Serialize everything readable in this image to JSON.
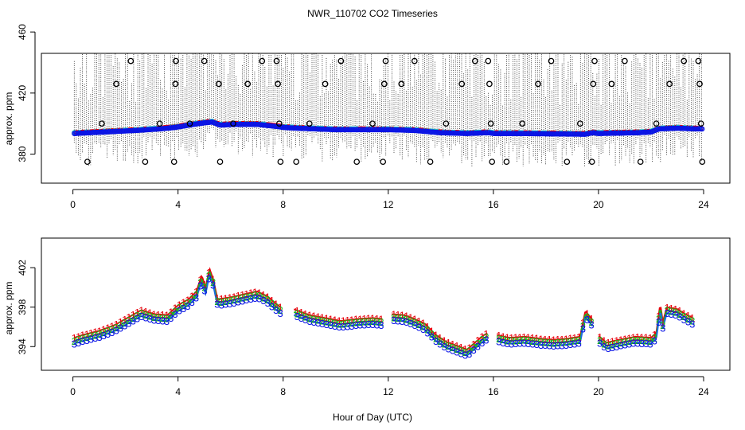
{
  "chart_data": {
    "title": "NWR_110702  CO2 Timeseries",
    "xlabel": "Hour of Day (UTC)",
    "colors": {
      "series1": "#e8000b",
      "series2": "#1ab51a",
      "series3": "#0a14e6",
      "line": "#1a6be0",
      "cyan": "#20c0c0",
      "outlier": "#000000"
    },
    "panels": [
      {
        "type": "scatter",
        "ylabel": "approx. ppm",
        "xlim": [
          -1.2,
          25.0
        ],
        "ylim": [
          361,
          446
        ],
        "xticks": [
          "0",
          "4",
          "8",
          "12",
          "16",
          "20",
          "24"
        ],
        "xtick_values": [
          0,
          4,
          8,
          12,
          16,
          20,
          24
        ],
        "yticks": [
          "380",
          "420",
          "460"
        ],
        "ytick_values": [
          380,
          420,
          460
        ],
        "series_note": "1-minute CO2 with whiskers and outlier circles",
        "baseline_knots": [
          [
            0.05,
            393.5
          ],
          [
            0.6,
            394
          ],
          [
            1.2,
            394.5
          ],
          [
            2.4,
            395.5
          ],
          [
            3.3,
            396.5
          ],
          [
            3.9,
            397.5
          ],
          [
            4.6,
            399.5
          ],
          [
            5.0,
            400.5
          ],
          [
            5.3,
            401
          ],
          [
            5.6,
            399
          ],
          [
            6.2,
            399.5
          ],
          [
            7.0,
            399.5
          ],
          [
            7.8,
            398
          ],
          [
            8.0,
            397.5
          ],
          [
            8.5,
            397
          ],
          [
            10.0,
            396
          ],
          [
            12.0,
            396
          ],
          [
            13.0,
            395.5
          ],
          [
            14.0,
            394
          ],
          [
            15.0,
            393.5
          ],
          [
            15.7,
            394
          ],
          [
            15.85,
            394
          ],
          [
            16.0,
            393.5
          ],
          [
            17.0,
            393.5
          ],
          [
            19.5,
            393
          ],
          [
            19.8,
            394
          ],
          [
            20.0,
            393.5
          ],
          [
            21.5,
            394
          ],
          [
            22.0,
            394.5
          ],
          [
            22.3,
            396.5
          ],
          [
            23.0,
            397
          ],
          [
            23.7,
            396.5
          ]
        ],
        "outliers": [
          {
            "x": 0.55,
            "y": 375
          },
          {
            "x": 1.1,
            "y": 400
          },
          {
            "x": 1.65,
            "y": 426
          },
          {
            "x": 2.2,
            "y": 441
          },
          {
            "x": 2.75,
            "y": 375
          },
          {
            "x": 3.3,
            "y": 400
          },
          {
            "x": 3.85,
            "y": 375
          },
          {
            "x": 3.9,
            "y": 426
          },
          {
            "x": 3.92,
            "y": 441
          },
          {
            "x": 4.45,
            "y": 400
          },
          {
            "x": 5.0,
            "y": 441
          },
          {
            "x": 5.55,
            "y": 426
          },
          {
            "x": 5.6,
            "y": 375
          },
          {
            "x": 6.1,
            "y": 400
          },
          {
            "x": 6.65,
            "y": 426
          },
          {
            "x": 7.2,
            "y": 441
          },
          {
            "x": 7.75,
            "y": 441
          },
          {
            "x": 7.8,
            "y": 426
          },
          {
            "x": 7.85,
            "y": 400
          },
          {
            "x": 7.9,
            "y": 375
          },
          {
            "x": 8.5,
            "y": 375
          },
          {
            "x": 9.0,
            "y": 400
          },
          {
            "x": 9.6,
            "y": 426
          },
          {
            "x": 10.2,
            "y": 441
          },
          {
            "x": 10.8,
            "y": 375
          },
          {
            "x": 11.4,
            "y": 400
          },
          {
            "x": 11.8,
            "y": 375
          },
          {
            "x": 11.85,
            "y": 426
          },
          {
            "x": 11.9,
            "y": 441
          },
          {
            "x": 12.5,
            "y": 426
          },
          {
            "x": 13.0,
            "y": 441
          },
          {
            "x": 13.6,
            "y": 375
          },
          {
            "x": 14.2,
            "y": 400
          },
          {
            "x": 14.8,
            "y": 426
          },
          {
            "x": 15.3,
            "y": 441
          },
          {
            "x": 15.8,
            "y": 441
          },
          {
            "x": 15.85,
            "y": 426
          },
          {
            "x": 15.9,
            "y": 400
          },
          {
            "x": 15.95,
            "y": 375
          },
          {
            "x": 16.5,
            "y": 375
          },
          {
            "x": 17.1,
            "y": 400
          },
          {
            "x": 17.7,
            "y": 426
          },
          {
            "x": 18.2,
            "y": 441
          },
          {
            "x": 18.8,
            "y": 375
          },
          {
            "x": 19.3,
            "y": 400
          },
          {
            "x": 19.75,
            "y": 375
          },
          {
            "x": 19.8,
            "y": 426
          },
          {
            "x": 19.85,
            "y": 441
          },
          {
            "x": 20.5,
            "y": 426
          },
          {
            "x": 21.0,
            "y": 441
          },
          {
            "x": 21.6,
            "y": 375
          },
          {
            "x": 22.2,
            "y": 400
          },
          {
            "x": 22.7,
            "y": 426
          },
          {
            "x": 23.25,
            "y": 441
          },
          {
            "x": 23.8,
            "y": 441
          },
          {
            "x": 23.85,
            "y": 426
          },
          {
            "x": 23.9,
            "y": 400
          },
          {
            "x": 23.95,
            "y": 375
          }
        ]
      },
      {
        "type": "line",
        "ylabel": "approx. ppm",
        "xlim": [
          -1.2,
          25.0
        ],
        "ylim": [
          391.6,
          405.0
        ],
        "xticks": [
          "0",
          "4",
          "8",
          "12",
          "16",
          "20",
          "24"
        ],
        "xtick_values": [
          0,
          4,
          8,
          12,
          16,
          20,
          24
        ],
        "yticks": [
          "394",
          "398",
          "402"
        ],
        "ytick_values": [
          394,
          398,
          402
        ],
        "series": [
          {
            "name": "1",
            "offset": 0.6
          },
          {
            "name": "2",
            "offset": 0.3
          },
          {
            "name": "3",
            "offset": 0.0
          }
        ],
        "series3_knots": [
          [
            0.05,
            394.3
          ],
          [
            0.4,
            394.6
          ],
          [
            1.0,
            395.0
          ],
          [
            1.6,
            395.6
          ],
          [
            2.2,
            396.5
          ],
          [
            2.6,
            397.1
          ],
          [
            3.1,
            396.7
          ],
          [
            3.6,
            396.6
          ],
          [
            4.0,
            397.6
          ],
          [
            4.4,
            398.2
          ],
          [
            4.7,
            399.0
          ],
          [
            4.9,
            400.6
          ],
          [
            5.05,
            399.4
          ],
          [
            5.2,
            401.3
          ],
          [
            5.35,
            400.1
          ],
          [
            5.5,
            398.2
          ],
          [
            6.0,
            398.4
          ],
          [
            6.5,
            398.7
          ],
          [
            7.0,
            399.0
          ],
          [
            7.4,
            398.5
          ],
          [
            7.7,
            397.8
          ],
          [
            7.9,
            397.4
          ],
          [
            8.4,
            397.2
          ],
          [
            9.0,
            396.6
          ],
          [
            9.6,
            396.3
          ],
          [
            10.2,
            396.0
          ],
          [
            10.8,
            396.2
          ],
          [
            11.4,
            396.3
          ],
          [
            11.8,
            396.2
          ],
          [
            12.1,
            396.7
          ],
          [
            12.6,
            396.6
          ],
          [
            13.0,
            396.2
          ],
          [
            13.4,
            395.7
          ],
          [
            13.8,
            394.6
          ],
          [
            14.2,
            393.9
          ],
          [
            14.6,
            393.5
          ],
          [
            15.0,
            393.1
          ],
          [
            15.3,
            393.8
          ],
          [
            15.6,
            394.5
          ],
          [
            15.8,
            394.8
          ],
          [
            16.1,
            394.6
          ],
          [
            16.6,
            394.3
          ],
          [
            17.2,
            394.4
          ],
          [
            17.8,
            394.2
          ],
          [
            18.3,
            394.1
          ],
          [
            18.8,
            394.2
          ],
          [
            19.3,
            394.4
          ],
          [
            19.5,
            397.0
          ],
          [
            19.8,
            396.0
          ],
          [
            20.0,
            394.5
          ],
          [
            20.3,
            393.8
          ],
          [
            20.8,
            394.1
          ],
          [
            21.4,
            394.4
          ],
          [
            22.0,
            394.3
          ],
          [
            22.2,
            394.8
          ],
          [
            22.35,
            397.7
          ],
          [
            22.45,
            395.9
          ],
          [
            22.6,
            397.4
          ],
          [
            23.0,
            397.2
          ],
          [
            23.3,
            396.7
          ],
          [
            23.6,
            396.3
          ]
        ],
        "gaps": [
          [
            7.9,
            8.4
          ],
          [
            11.8,
            12.1
          ],
          [
            15.8,
            16.1
          ],
          [
            19.8,
            20.0
          ]
        ]
      }
    ]
  }
}
